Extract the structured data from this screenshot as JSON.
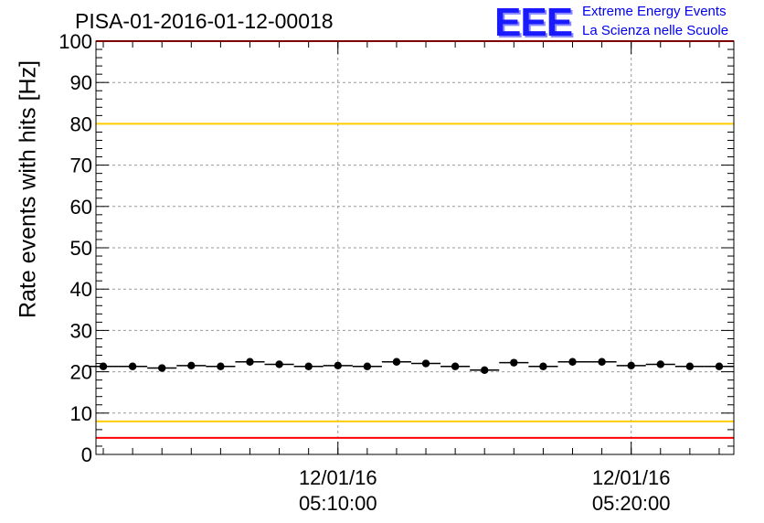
{
  "title": "PISA-01-2016-01-12-00018",
  "logo": {
    "mark": "EEE",
    "line1": "Extreme Energy Events",
    "line2": "La Scienza nelle Scuole"
  },
  "chart_data": {
    "type": "scatter",
    "title": "PISA-01-2016-01-12-00018",
    "xlabel": "",
    "ylabel": "Rate events with hits [Hz]",
    "ylim": [
      0,
      100
    ],
    "xlim": [
      "2016-01-12 05:01:45",
      "2016-01-12 05:23:30"
    ],
    "y_ticks": [
      0,
      10,
      20,
      30,
      40,
      50,
      60,
      70,
      80,
      90,
      100
    ],
    "x_tick_labels": [
      {
        "x": "2016-01-12 05:10:00",
        "date": "12/01/16",
        "time": "05:10:00"
      },
      {
        "x": "2016-01-12 05:20:00",
        "date": "12/01/16",
        "time": "05:20:00"
      }
    ],
    "grid": true,
    "series": [
      {
        "x": [
          "2016-01-12 05:02:00",
          "2016-01-12 05:03:00",
          "2016-01-12 05:04:00",
          "2016-01-12 05:05:00",
          "2016-01-12 05:06:00",
          "2016-01-12 05:07:00",
          "2016-01-12 05:08:00",
          "2016-01-12 05:09:00",
          "2016-01-12 05:10:00",
          "2016-01-12 05:11:00",
          "2016-01-12 05:12:00",
          "2016-01-12 05:13:00",
          "2016-01-12 05:14:00",
          "2016-01-12 05:15:00",
          "2016-01-12 05:16:00",
          "2016-01-12 05:17:00",
          "2016-01-12 05:18:00",
          "2016-01-12 05:19:00",
          "2016-01-12 05:20:00",
          "2016-01-12 05:21:00",
          "2016-01-12 05:22:00",
          "2016-01-12 05:23:00"
        ],
        "y": [
          21.3,
          21.3,
          20.9,
          21.5,
          21.3,
          22.4,
          21.8,
          21.3,
          21.5,
          21.3,
          22.4,
          22.0,
          21.3,
          20.4,
          22.2,
          21.3,
          22.4,
          22.4,
          21.5,
          21.8,
          21.3,
          21.3
        ]
      }
    ],
    "reference_lines": [
      {
        "y": 100,
        "color": "#ff0000"
      },
      {
        "y": 80,
        "color": "#ffcc00"
      },
      {
        "y": 8,
        "color": "#ffcc00"
      },
      {
        "y": 4,
        "color": "#ff0000"
      }
    ],
    "colors": {
      "marker": "#000000",
      "grid": "#999999"
    }
  }
}
